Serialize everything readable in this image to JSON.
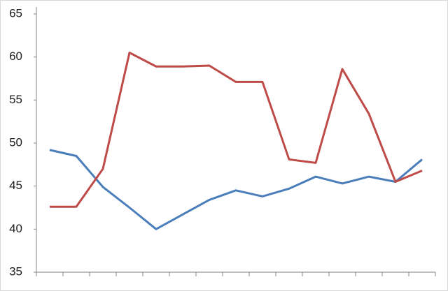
{
  "chart_data": {
    "type": "line",
    "categories": [
      null,
      null,
      null,
      null,
      null,
      null,
      null,
      null,
      null,
      null,
      null,
      null,
      null,
      null,
      null
    ],
    "series": [
      {
        "color": "#4a7ebb",
        "values": [
          49.2,
          48.5,
          44.9,
          42.5,
          40.0,
          41.7,
          43.4,
          44.5,
          43.8,
          44.7,
          46.1,
          45.3,
          46.1,
          45.5,
          48.1
        ]
      },
      {
        "color": "#be4b48",
        "values": [
          42.6,
          42.6,
          47.0,
          60.5,
          58.9,
          58.9,
          59.0,
          57.1,
          57.1,
          48.1,
          47.7,
          58.6,
          53.4,
          45.5,
          46.8
        ]
      }
    ],
    "ylim": [
      35,
      65
    ],
    "yticks": [
      35,
      40,
      45,
      50,
      55,
      60,
      65
    ],
    "grid": false
  }
}
